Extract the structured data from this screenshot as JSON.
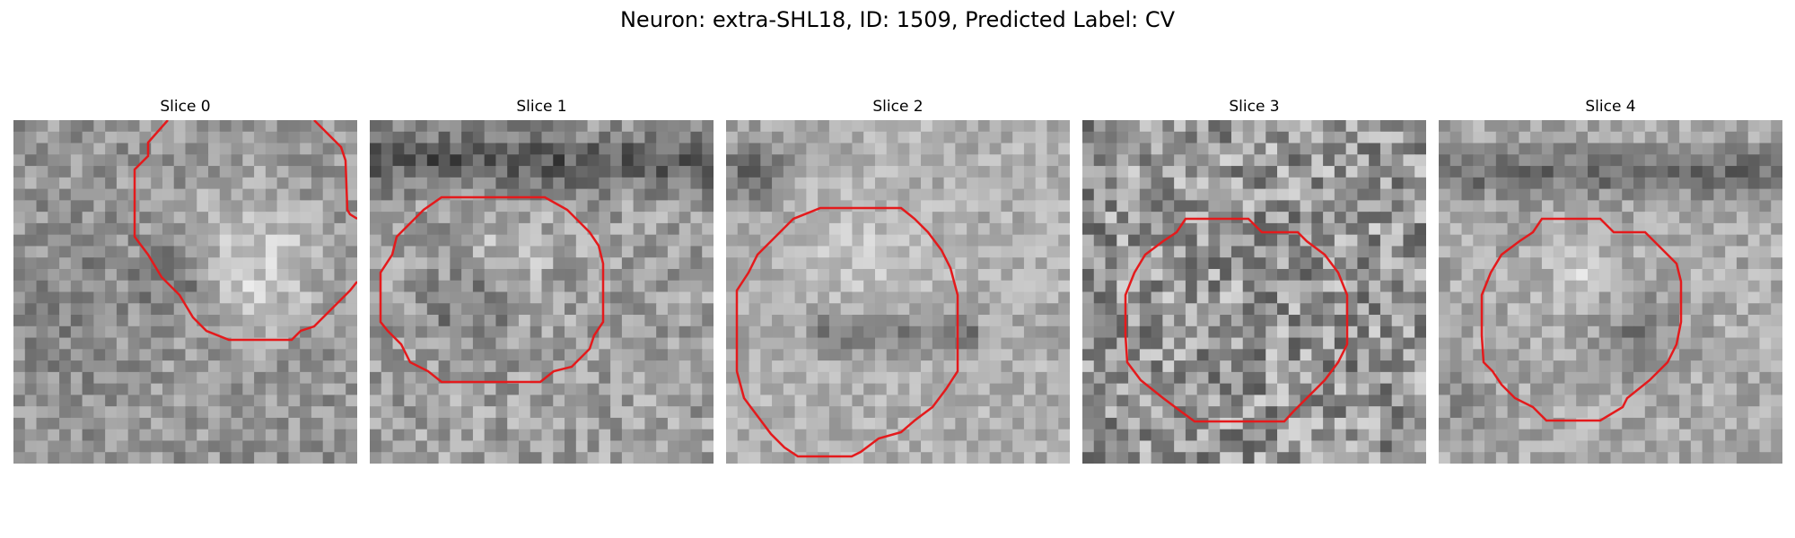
{
  "figure": {
    "title": "Neuron: extra-SHL18, ID: 1509, Predicted Label: CV"
  },
  "panels": [
    {
      "title": "Slice 0",
      "contour_color": "#e41a1c"
    },
    {
      "title": "Slice 1",
      "contour_color": "#e41a1c"
    },
    {
      "title": "Slice 2",
      "contour_color": "#e41a1c"
    },
    {
      "title": "Slice 3",
      "contour_color": "#e41a1c"
    },
    {
      "title": "Slice 4",
      "contour_color": "#e41a1c"
    }
  ]
}
